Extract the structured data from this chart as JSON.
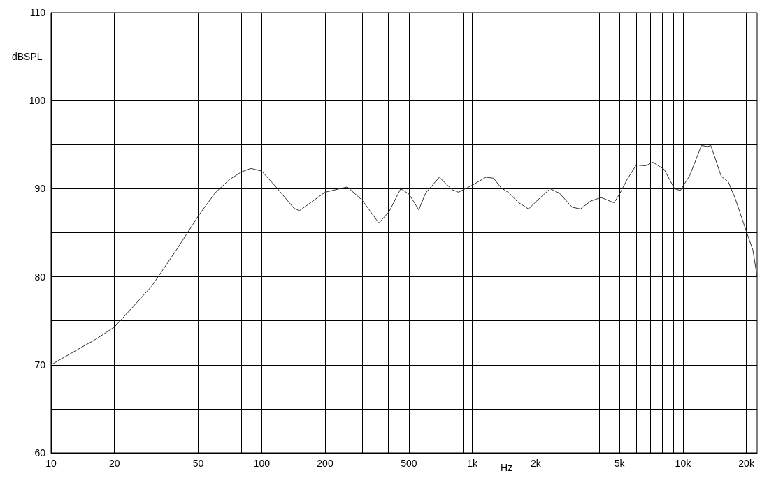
{
  "chart_data": {
    "type": "line",
    "xlabel": "Hz",
    "ylabel": "dBSPL",
    "log": "x",
    "grid": true,
    "marker": "none",
    "line_style": "solid",
    "xlim": [
      10,
      22500
    ],
    "ylim": [
      60,
      110
    ],
    "xticks": [
      10,
      20,
      {
        "value": 30,
        "label": null
      },
      {
        "value": 40,
        "label": null
      },
      50,
      {
        "value": 60,
        "label": null
      },
      {
        "value": 70,
        "label": null
      },
      {
        "value": 80,
        "label": null
      },
      {
        "value": 90,
        "label": null
      },
      100,
      200,
      {
        "value": 300,
        "label": null
      },
      {
        "value": 400,
        "label": null
      },
      500,
      {
        "value": 600,
        "label": null
      },
      {
        "value": 700,
        "label": null
      },
      {
        "value": 800,
        "label": null
      },
      {
        "value": 900,
        "label": null
      },
      {
        "value": 1000,
        "label": "1k"
      },
      {
        "value": 2000,
        "label": "2k"
      },
      {
        "value": 3000,
        "label": null
      },
      {
        "value": 4000,
        "label": null
      },
      {
        "value": 5000,
        "label": "5k"
      },
      {
        "value": 6000,
        "label": null
      },
      {
        "value": 7000,
        "label": null
      },
      {
        "value": 8000,
        "label": null
      },
      {
        "value": 9000,
        "label": null
      },
      {
        "value": 10000,
        "label": "10k"
      },
      {
        "value": 20000,
        "label": "20k"
      }
    ],
    "yticks": [
      60,
      {
        "value": 65,
        "label": null
      },
      70,
      {
        "value": 75,
        "label": null
      },
      80,
      {
        "value": 85,
        "label": null
      },
      90,
      {
        "value": 95,
        "label": null
      },
      100,
      {
        "value": 105,
        "label": null
      },
      110
    ],
    "series": [
      {
        "color": "#333333",
        "x": [
          10,
          13.3,
          16.3,
          20,
          24.5,
          30,
          40,
          50,
          60,
          70,
          80,
          89,
          100,
          119,
          142,
          151,
          200,
          255,
          300,
          360,
          403,
          457,
          500,
          557,
          600,
          697,
          801,
          860,
          1000,
          1160,
          1260,
          1370,
          1500,
          1640,
          1850,
          2000,
          2340,
          2590,
          2980,
          3260,
          3650,
          4090,
          4710,
          5000,
          5420,
          6000,
          6640,
          7200,
          8140,
          9120,
          9720,
          10770,
          12240,
          13100,
          13560,
          15200,
          16400,
          17700,
          20100,
          21500,
          22500
        ],
        "values": [
          70.0,
          71.7,
          72.9,
          74.3,
          76.6,
          78.9,
          83.3,
          86.9,
          89.5,
          91.0,
          91.9,
          92.3,
          92.0,
          90.0,
          87.8,
          87.5,
          89.6,
          90.2,
          88.7,
          86.1,
          87.4,
          90.0,
          89.4,
          87.6,
          89.5,
          91.3,
          89.9,
          89.6,
          90.4,
          91.3,
          91.2,
          90.1,
          89.5,
          88.5,
          87.7,
          88.5,
          90.0,
          89.5,
          87.9,
          87.7,
          88.6,
          89.0,
          88.4,
          89.4,
          91.0,
          92.7,
          92.6,
          93.0,
          92.2,
          90.0,
          89.8,
          91.5,
          94.9,
          94.8,
          94.9,
          91.4,
          90.8,
          88.9,
          85.0,
          83.0,
          80.0
        ]
      }
    ]
  }
}
